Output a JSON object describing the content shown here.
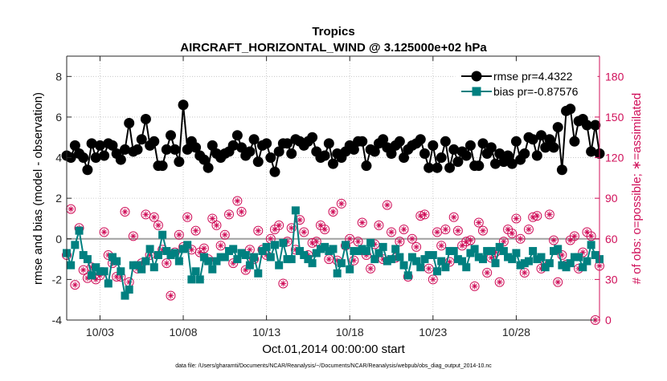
{
  "chart_data": {
    "type": "line",
    "title": "Tropics",
    "subtitle": "AIRCRAFT_HORIZONTAL_WIND @ 3.125000e+02 hPa",
    "xlabel": "Oct.01,2014 00:00:00 start",
    "ylabel": "rmse and bias (model - observation)",
    "y2label": "# of obs: o=possible; ∗=assimilated",
    "footnote": "data file: /Users/gharamti/Documents/NCAR/Reanalysis/~/Documents/NCAR/Reanalysis/webpub/obs_diag_output_2014-10.nc",
    "xlim": [
      1,
      33
    ],
    "ylim": [
      -4,
      9
    ],
    "y2lim": [
      0,
      195
    ],
    "x_ticks": [
      3,
      8,
      13,
      18,
      23,
      28
    ],
    "x_tick_labels": [
      "10/03",
      "10/08",
      "10/13",
      "10/18",
      "10/23",
      "10/28"
    ],
    "y_ticks": [
      -4,
      -2,
      0,
      2,
      4,
      6,
      8
    ],
    "y_tick_labels": [
      "-4",
      "-2",
      "0",
      "2",
      "4",
      "6",
      "8"
    ],
    "y2_ticks": [
      0,
      30,
      60,
      90,
      120,
      150,
      180
    ],
    "y2_tick_labels": [
      "0",
      "30",
      "60",
      "90",
      "120",
      "150",
      "180"
    ],
    "zero_line": 0,
    "grid": "dotted",
    "legend": {
      "position": "top-right",
      "entries": [
        "rmse pr=4.4322",
        "bias pr=-0.87576"
      ]
    },
    "colors": {
      "rmse": "#000000",
      "bias": "#008080",
      "obs": "#d0105a",
      "zero": "#a0a0a0",
      "grid": "#bfbfbf"
    },
    "series": [
      {
        "name": "rmse pr=4.4322",
        "marker": "circle",
        "x": [
          1.0,
          1.25,
          1.5,
          1.75,
          2.0,
          2.25,
          2.5,
          2.75,
          3.0,
          3.25,
          3.5,
          3.75,
          4.0,
          4.25,
          4.5,
          4.75,
          5.0,
          5.25,
          5.5,
          5.75,
          6.0,
          6.25,
          6.5,
          6.75,
          7.0,
          7.25,
          7.5,
          7.75,
          8.0,
          8.25,
          8.5,
          8.75,
          9.0,
          9.25,
          9.5,
          9.75,
          10.0,
          10.25,
          10.5,
          10.75,
          11.0,
          11.25,
          11.5,
          11.75,
          12.0,
          12.25,
          12.5,
          12.75,
          13.0,
          13.25,
          13.5,
          13.75,
          14.0,
          14.25,
          14.5,
          14.75,
          15.0,
          15.25,
          15.5,
          15.75,
          16.0,
          16.25,
          16.5,
          16.75,
          17.0,
          17.25,
          17.5,
          17.75,
          18.0,
          18.25,
          18.5,
          18.75,
          19.0,
          19.25,
          19.5,
          19.75,
          20.0,
          20.25,
          20.5,
          20.75,
          21.0,
          21.25,
          21.5,
          21.75,
          22.0,
          22.25,
          22.5,
          22.75,
          23.0,
          23.25,
          23.5,
          23.75,
          24.0,
          24.25,
          24.5,
          24.75,
          25.0,
          25.25,
          25.5,
          25.75,
          26.0,
          26.25,
          26.5,
          26.75,
          27.0,
          27.25,
          27.5,
          27.75,
          28.0,
          28.25,
          28.5,
          28.75,
          29.0,
          29.25,
          29.5,
          29.75,
          30.0,
          30.25,
          30.5,
          30.75,
          31.0,
          31.25,
          31.5,
          31.75,
          32.0,
          32.25,
          32.5,
          32.75,
          33.0
        ],
        "values": [
          4.1,
          4.0,
          4.6,
          4.2,
          4.0,
          3.4,
          4.7,
          4.0,
          4.6,
          4.1,
          4.7,
          4.6,
          4.2,
          3.9,
          4.4,
          5.7,
          4.3,
          4.4,
          4.9,
          5.9,
          4.6,
          4.8,
          3.6,
          3.6,
          4.4,
          5.1,
          4.4,
          3.8,
          6.6,
          4.4,
          4.8,
          4.5,
          4.1,
          3.9,
          3.5,
          4.6,
          4.2,
          4.0,
          4.2,
          4.3,
          4.6,
          5.1,
          4.5,
          4.1,
          4.3,
          4.9,
          3.8,
          4.6,
          4.7,
          4.0,
          3.3,
          4.3,
          4.7,
          4.7,
          4.2,
          4.9,
          4.8,
          4.6,
          4.8,
          5.0,
          4.3,
          4.0,
          4.1,
          4.7,
          3.7,
          4.2,
          4.0,
          4.3,
          4.6,
          4.4,
          4.8,
          4.8,
          3.6,
          4.4,
          4.3,
          4.7,
          4.9,
          4.5,
          4.2,
          4.6,
          4.8,
          4.0,
          4.4,
          4.6,
          4.7,
          4.9,
          4.2,
          3.5,
          4.6,
          3.5,
          4.0,
          4.8,
          3.5,
          4.4,
          3.8,
          4.3,
          4.1,
          4.6,
          3.6,
          3.6,
          4.7,
          4.2,
          4.5,
          3.7,
          4.2,
          3.8,
          4.1,
          3.7,
          4.8,
          3.9,
          4.2,
          5.0,
          4.9,
          4.1,
          5.1,
          4.5,
          4.9,
          4.5,
          5.5,
          3.4,
          6.3,
          6.4,
          4.8,
          5.8,
          5.9,
          5.6,
          4.3,
          5.6,
          4.2
        ],
        "color": "#000000"
      },
      {
        "name": "bias pr=-0.87576",
        "marker": "square",
        "x": [
          1.0,
          1.25,
          1.5,
          1.75,
          2.0,
          2.25,
          2.5,
          2.75,
          3.0,
          3.25,
          3.5,
          3.75,
          4.0,
          4.25,
          4.5,
          4.75,
          5.0,
          5.25,
          5.5,
          5.75,
          6.0,
          6.25,
          6.5,
          6.75,
          7.0,
          7.25,
          7.5,
          7.75,
          8.0,
          8.25,
          8.5,
          8.75,
          9.0,
          9.25,
          9.5,
          9.75,
          10.0,
          10.25,
          10.5,
          10.75,
          11.0,
          11.25,
          11.5,
          11.75,
          12.0,
          12.25,
          12.5,
          12.75,
          13.0,
          13.25,
          13.5,
          13.75,
          14.0,
          14.25,
          14.5,
          14.75,
          15.0,
          15.25,
          15.5,
          15.75,
          16.0,
          16.25,
          16.5,
          16.75,
          17.0,
          17.25,
          17.5,
          17.75,
          18.0,
          18.25,
          18.5,
          18.75,
          19.0,
          19.25,
          19.5,
          19.75,
          20.0,
          20.25,
          20.5,
          20.75,
          21.0,
          21.25,
          21.5,
          21.75,
          22.0,
          22.25,
          22.5,
          22.75,
          23.0,
          23.25,
          23.5,
          23.75,
          24.0,
          24.25,
          24.5,
          24.75,
          25.0,
          25.25,
          25.5,
          25.75,
          26.0,
          26.25,
          26.5,
          26.75,
          27.0,
          27.25,
          27.5,
          27.75,
          28.0,
          28.25,
          28.5,
          28.75,
          29.0,
          29.25,
          29.5,
          29.75,
          30.0,
          30.25,
          30.5,
          30.75,
          31.0,
          31.25,
          31.5,
          31.75,
          32.0,
          32.25,
          32.5,
          32.75,
          33.0
        ],
        "values": [
          -0.7,
          -1.3,
          -0.3,
          0.4,
          -0.8,
          -1.0,
          -1.8,
          -1.4,
          -1.6,
          -1.6,
          -2.2,
          -0.9,
          -1.1,
          -1.6,
          -2.8,
          -2.5,
          -1.3,
          -1.3,
          -1.5,
          -1.1,
          -0.5,
          -1.4,
          -0.8,
          0.2,
          -0.6,
          -0.8,
          -0.7,
          -1.1,
          -0.5,
          -0.3,
          -2.0,
          -1.6,
          -2.0,
          -0.9,
          -1.1,
          -1.5,
          -1.1,
          -0.9,
          -0.9,
          -0.6,
          -0.5,
          -1.0,
          -0.7,
          -0.8,
          -1.3,
          -0.9,
          -1.7,
          -0.6,
          -0.4,
          -0.9,
          -0.3,
          -1.3,
          -0.2,
          -1.0,
          -1.0,
          1.4,
          -0.6,
          -0.8,
          -1.0,
          -1.2,
          -0.7,
          -0.5,
          -0.4,
          -0.6,
          -0.5,
          -1.7,
          -1.2,
          -0.3,
          -1.5,
          -0.6,
          -0.6,
          -0.5,
          -0.6,
          -0.2,
          -1.0,
          -0.7,
          -0.4,
          -1.1,
          -1.0,
          -0.5,
          -0.9,
          -1.3,
          -1.8,
          -0.9,
          -1.1,
          -1.4,
          -1.0,
          -0.8,
          -0.8,
          -1.6,
          -1.1,
          -1.4,
          -0.6,
          -0.6,
          -1.0,
          -1.1,
          -1.4,
          -0.7,
          -0.5,
          -0.9,
          -1.0,
          -0.6,
          -0.6,
          -1.2,
          -0.4,
          -0.6,
          -0.9,
          -1.0,
          -0.7,
          -1.3,
          -1.2,
          -1.1,
          -0.6,
          -1.0,
          -0.9,
          -1.4,
          -1.2,
          -0.6,
          -0.5,
          -1.3,
          -1.4,
          -1.2,
          -0.9,
          -0.9,
          -1.4,
          -1.1,
          -0.3,
          -0.8,
          -1.0
        ],
        "color": "#008080"
      },
      {
        "name": "# of obs possible",
        "marker": "open-circle",
        "axis": "right",
        "x": [
          1.0,
          1.25,
          1.5,
          1.75,
          2.0,
          2.25,
          2.5,
          2.75,
          3.0,
          3.25,
          3.5,
          3.75,
          4.0,
          4.25,
          4.5,
          4.75,
          5.0,
          5.25,
          5.5,
          5.75,
          6.0,
          6.25,
          6.5,
          6.75,
          7.0,
          7.25,
          7.5,
          7.75,
          8.0,
          8.25,
          8.5,
          8.75,
          9.0,
          9.25,
          9.5,
          9.75,
          10.0,
          10.25,
          10.5,
          10.75,
          11.0,
          11.25,
          11.5,
          11.75,
          12.0,
          12.25,
          12.5,
          12.75,
          13.0,
          13.25,
          13.5,
          13.75,
          14.0,
          14.25,
          14.5,
          14.75,
          15.0,
          15.25,
          15.5,
          15.75,
          16.0,
          16.25,
          16.5,
          16.75,
          17.0,
          17.25,
          17.5,
          17.75,
          18.0,
          18.25,
          18.5,
          18.75,
          19.0,
          19.25,
          19.5,
          19.75,
          20.0,
          20.25,
          20.5,
          20.75,
          21.0,
          21.25,
          21.5,
          21.75,
          22.0,
          22.25,
          22.5,
          22.75,
          23.0,
          23.25,
          23.5,
          23.75,
          24.0,
          24.25,
          24.5,
          24.75,
          25.0,
          25.25,
          25.5,
          25.75,
          26.0,
          26.25,
          26.5,
          26.75,
          27.0,
          27.25,
          27.5,
          27.75,
          28.0,
          28.25,
          28.5,
          28.75,
          29.0,
          29.25,
          29.5,
          29.75,
          30.0,
          30.25,
          30.5,
          30.75,
          31.0,
          31.25,
          31.5,
          31.75,
          32.0,
          32.25,
          32.5,
          32.75,
          33.0
        ],
        "values": [
          48,
          82,
          26,
          68,
          37,
          31,
          39,
          30,
          33,
          65,
          48,
          42,
          32,
          32,
          80,
          28,
          62,
          38,
          42,
          78,
          48,
          76,
          70,
          52,
          42,
          18,
          50,
          63,
          54,
          76,
          52,
          66,
          50,
          53,
          45,
          75,
          70,
          55,
          63,
          78,
          42,
          88,
          80,
          37,
          52,
          45,
          66,
          52,
          48,
          60,
          67,
          70,
          27,
          58,
          68,
          52,
          74,
          65,
          48,
          57,
          58,
          70,
          67,
          45,
          80,
          44,
          86,
          55,
          60,
          44,
          58,
          72,
          48,
          38,
          56,
          70,
          45,
          85,
          65,
          46,
          58,
          67,
          32,
          60,
          54,
          77,
          78,
          38,
          30,
          65,
          55,
          67,
          43,
          76,
          66,
          55,
          58,
          59,
          25,
          72,
          66,
          35,
          46,
          50,
          28,
          58,
          67,
          64,
          75,
          60,
          35,
          67,
          76,
          77,
          38,
          41,
          78,
          59,
          28,
          48,
          41,
          59,
          62,
          38,
          50,
          65,
          62,
          0,
          40
        ],
        "color": "#d0105a"
      },
      {
        "name": "# of obs assimilated",
        "marker": "asterisk",
        "axis": "right",
        "x": [
          1.0,
          1.25,
          1.5,
          1.75,
          2.0,
          2.25,
          2.5,
          2.75,
          3.0,
          3.25,
          3.5,
          3.75,
          4.0,
          4.25,
          4.5,
          4.75,
          5.0,
          5.25,
          5.5,
          5.75,
          6.0,
          6.25,
          6.5,
          6.75,
          7.0,
          7.25,
          7.5,
          7.75,
          8.0,
          8.25,
          8.5,
          8.75,
          9.0,
          9.25,
          9.5,
          9.75,
          10.0,
          10.25,
          10.5,
          10.75,
          11.0,
          11.25,
          11.5,
          11.75,
          12.0,
          12.25,
          12.5,
          12.75,
          13.0,
          13.25,
          13.5,
          13.75,
          14.0,
          14.25,
          14.5,
          14.75,
          15.0,
          15.25,
          15.5,
          15.75,
          16.0,
          16.25,
          16.5,
          16.75,
          17.0,
          17.25,
          17.5,
          17.75,
          18.0,
          18.25,
          18.5,
          18.75,
          19.0,
          19.25,
          19.5,
          19.75,
          20.0,
          20.25,
          20.5,
          20.75,
          21.0,
          21.25,
          21.5,
          21.75,
          22.0,
          22.25,
          22.5,
          22.75,
          23.0,
          23.25,
          23.5,
          23.75,
          24.0,
          24.25,
          24.5,
          24.75,
          25.0,
          25.25,
          25.5,
          25.75,
          26.0,
          26.25,
          26.5,
          26.75,
          27.0,
          27.25,
          27.5,
          27.75,
          28.0,
          28.25,
          28.5,
          28.75,
          29.0,
          29.25,
          29.5,
          29.75,
          30.0,
          30.25,
          30.5,
          30.75,
          31.0,
          31.25,
          31.5,
          31.75,
          32.0,
          32.25,
          32.5,
          32.75,
          33.0
        ],
        "values": [
          48,
          82,
          26,
          68,
          37,
          31,
          39,
          30,
          33,
          65,
          48,
          42,
          32,
          32,
          80,
          28,
          62,
          38,
          42,
          78,
          48,
          76,
          70,
          52,
          42,
          18,
          50,
          63,
          54,
          76,
          52,
          66,
          50,
          53,
          45,
          75,
          70,
          55,
          63,
          78,
          42,
          88,
          80,
          37,
          52,
          45,
          66,
          52,
          48,
          60,
          67,
          70,
          27,
          58,
          68,
          52,
          74,
          65,
          48,
          57,
          58,
          70,
          67,
          45,
          80,
          44,
          86,
          55,
          60,
          44,
          58,
          72,
          48,
          38,
          56,
          70,
          45,
          85,
          65,
          46,
          58,
          67,
          32,
          60,
          54,
          77,
          78,
          38,
          30,
          65,
          55,
          67,
          43,
          76,
          66,
          55,
          58,
          59,
          25,
          72,
          66,
          35,
          46,
          50,
          28,
          58,
          67,
          64,
          75,
          60,
          35,
          67,
          76,
          77,
          38,
          41,
          78,
          59,
          28,
          48,
          41,
          59,
          62,
          38,
          50,
          65,
          62,
          0,
          40
        ],
        "color": "#d0105a"
      }
    ]
  }
}
